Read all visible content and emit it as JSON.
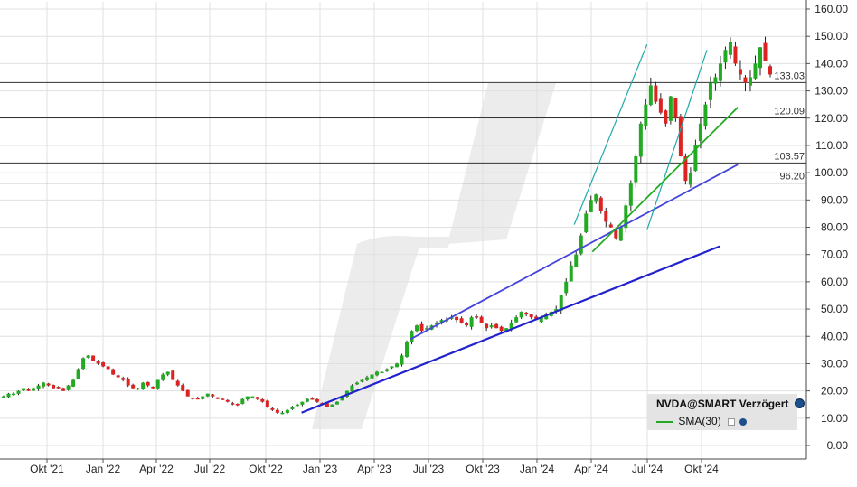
{
  "chart_data": {
    "type": "candlestick",
    "title": "",
    "xlabel": "",
    "ylabel": "",
    "ylim": [
      0,
      160
    ],
    "y_ticks": [
      "160.00",
      "150.00",
      "140.00",
      "130.00",
      "120.00",
      "110.00",
      "100.00",
      "90.00",
      "80.00",
      "70.00",
      "60.00",
      "50.00",
      "40.00",
      "30.00",
      "20.00",
      "10.00",
      "0.00"
    ],
    "x_tick_labels": [
      "Okt '21",
      "Jan '22",
      "Apr '22",
      "Jul '22",
      "Okt '22",
      "Jan '23",
      "Apr '23",
      "Jul '23",
      "Okt '23",
      "Jan '24",
      "Apr '24",
      "Jul '24",
      "Okt '24"
    ],
    "grid": true,
    "y_axis_position": "right",
    "horizontal_levels": [
      {
        "value": 133.03,
        "label": "133.03"
      },
      {
        "value": 120.09,
        "label": "120.09"
      },
      {
        "value": 103.57,
        "label": "103.57"
      },
      {
        "value": 96.2,
        "label": "96.20"
      }
    ],
    "trendlines": [
      {
        "color": "#2222cc",
        "from": [
          "Dez '22",
          12
        ],
        "to": [
          "Nov '24",
          73
        ]
      },
      {
        "color": "#4444dd",
        "from": [
          "Jun '23",
          39
        ],
        "to": [
          "Dez '24",
          103
        ]
      },
      {
        "color": "#22aa22",
        "from": [
          "Apr '24",
          71
        ],
        "to": [
          "Dez '24",
          124
        ]
      },
      {
        "color": "#22aaaa",
        "from": [
          "Mar '24",
          81
        ],
        "to": [
          "Jul '24",
          147
        ]
      },
      {
        "color": "#22aaaa",
        "from": [
          "Jul '24",
          79
        ],
        "to": [
          "Okt '24",
          145
        ]
      }
    ],
    "series": [
      {
        "type": "candlestick",
        "up_color": "#22aa22",
        "down_color": "#dd2222",
        "close": [
          18,
          19,
          19,
          20,
          21,
          20,
          21,
          22,
          23,
          22,
          21,
          21,
          20,
          22,
          24,
          28,
          32,
          33,
          31,
          30,
          29,
          28,
          26,
          25,
          24,
          22,
          21,
          21,
          23,
          22,
          21,
          24,
          26,
          27,
          24,
          22,
          20,
          18,
          17,
          17,
          18,
          19,
          18,
          17,
          17,
          16,
          15,
          15,
          17,
          18,
          18,
          17,
          16,
          14,
          13,
          12,
          12,
          13,
          14,
          15,
          16,
          17,
          17,
          16,
          15,
          14,
          15,
          16,
          18,
          20,
          22,
          23,
          24,
          25,
          26,
          27,
          27,
          28,
          29,
          30,
          33,
          38,
          42,
          44,
          42,
          43,
          44,
          45,
          46,
          46,
          47,
          46,
          45,
          44,
          47,
          47,
          45,
          43,
          44,
          43,
          42,
          43,
          45,
          47,
          49,
          48,
          47,
          46,
          47,
          48,
          49,
          50,
          55,
          60,
          66,
          70,
          77,
          85,
          90,
          92,
          86,
          82,
          80,
          76,
          80,
          88,
          96,
          106,
          118,
          125,
          132,
          126,
          122,
          118,
          128,
          120,
          106,
          97,
          100,
          110,
          118,
          125,
          133,
          135,
          140,
          145,
          148,
          140,
          136,
          133,
          135,
          140,
          146,
          141,
          136
        ]
      }
    ],
    "legend": {
      "position": "bottom-right",
      "instrument": "NVDA@SMART Verzögert",
      "entries": [
        {
          "label": "SMA(30)",
          "color": "#22aa22"
        }
      ]
    }
  }
}
